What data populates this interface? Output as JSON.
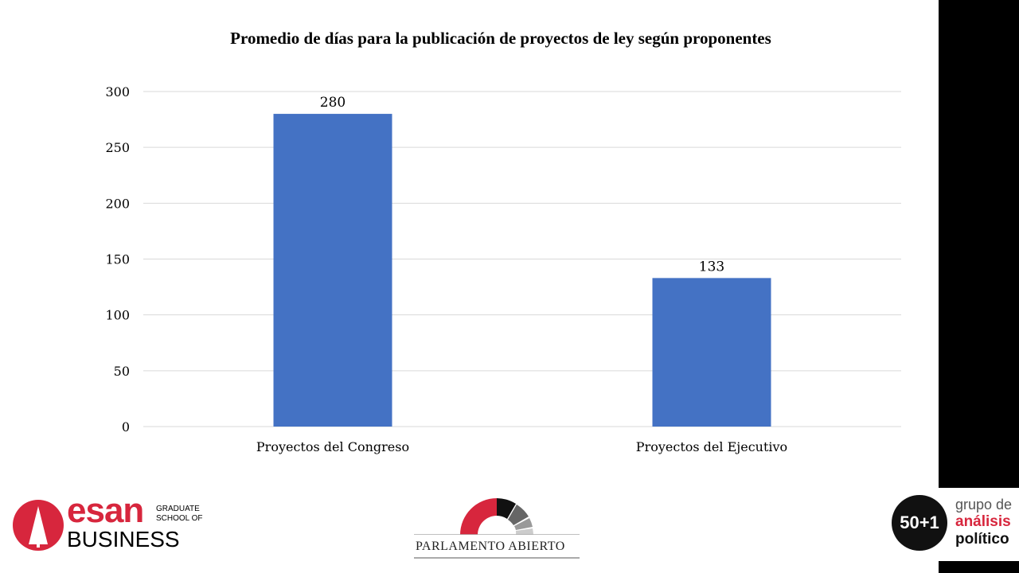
{
  "chart_data": {
    "type": "bar",
    "title": "Promedio de días para la publicación de proyectos de ley según proponentes",
    "categories": [
      "Proyectos del Congreso",
      "Proyectos del Ejecutivo"
    ],
    "values": [
      280,
      133
    ],
    "data_labels": [
      "280",
      "133"
    ],
    "xlabel": "",
    "ylabel": "",
    "ylim": [
      0,
      300
    ],
    "yticks": [
      0,
      50,
      100,
      150,
      200,
      250,
      300
    ],
    "grid": true,
    "legend": "none",
    "bar_color": "#4472C4"
  },
  "logos": {
    "esan": {
      "name": "esan",
      "sub1": "GRADUATE",
      "sub2": "SCHOOL OF",
      "sub3": "BUSINESS",
      "color": "#D7263D"
    },
    "parlamento": {
      "text": "PARLAMENTO ABIERTO"
    },
    "grupo": {
      "badge": "50+1",
      "line1": "grupo de",
      "line2": "análisis",
      "line3": "político"
    }
  }
}
